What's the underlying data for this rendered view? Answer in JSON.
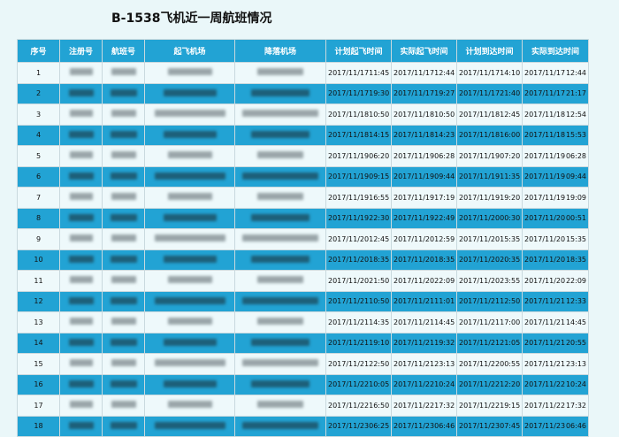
{
  "title": "B-1538飞机近一周航班情况",
  "headers": [
    "序号",
    "注册号",
    "航班号",
    "起飞机场",
    "降落机场",
    "计划起飞时间",
    "实际起飞时间",
    "计划到达时间",
    "实际到达时间"
  ],
  "colors": {
    "header": "#22a3d4",
    "alt_row": "#22a3d4",
    "row": "#eef9fb",
    "background": "#eaf7f9"
  },
  "rows": [
    [
      "1",
      "2017/11/17",
      "11:45",
      "2017/11/17",
      "12:44",
      "2017/11/17",
      "14:10",
      "2017/11/17",
      "12:44"
    ],
    [
      "2",
      "2017/11/17",
      "19:30",
      "2017/11/17",
      "19:27",
      "2017/11/17",
      "21:40",
      "2017/11/17",
      "21:17"
    ],
    [
      "3",
      "2017/11/18",
      "10:50",
      "2017/11/18",
      "10:50",
      "2017/11/18",
      "12:45",
      "2017/11/18",
      "12:54"
    ],
    [
      "4",
      "2017/11/18",
      "14:15",
      "2017/11/18",
      "14:23",
      "2017/11/18",
      "16:00",
      "2017/11/18",
      "15:53"
    ],
    [
      "5",
      "2017/11/19",
      "06:20",
      "2017/11/19",
      "06:28",
      "2017/11/19",
      "07:20",
      "2017/11/19",
      "06:28"
    ],
    [
      "6",
      "2017/11/19",
      "09:15",
      "2017/11/19",
      "09:44",
      "2017/11/19",
      "11:35",
      "2017/11/19",
      "09:44"
    ],
    [
      "7",
      "2017/11/19",
      "16:55",
      "2017/11/19",
      "17:19",
      "2017/11/19",
      "19:20",
      "2017/11/19",
      "19:09"
    ],
    [
      "8",
      "2017/11/19",
      "22:30",
      "2017/11/19",
      "22:49",
      "2017/11/20",
      "00:30",
      "2017/11/20",
      "00:51"
    ],
    [
      "9",
      "2017/11/20",
      "12:45",
      "2017/11/20",
      "12:59",
      "2017/11/20",
      "15:35",
      "2017/11/20",
      "15:35"
    ],
    [
      "10",
      "2017/11/20",
      "18:35",
      "2017/11/20",
      "18:35",
      "2017/11/20",
      "20:35",
      "2017/11/20",
      "18:35"
    ],
    [
      "11",
      "2017/11/20",
      "21:50",
      "2017/11/20",
      "22:09",
      "2017/11/20",
      "23:55",
      "2017/11/20",
      "22:09"
    ],
    [
      "12",
      "2017/11/21",
      "10:50",
      "2017/11/21",
      "11:01",
      "2017/11/21",
      "12:50",
      "2017/11/21",
      "12:33"
    ],
    [
      "13",
      "2017/11/21",
      "14:35",
      "2017/11/21",
      "14:45",
      "2017/11/21",
      "17:00",
      "2017/11/21",
      "14:45"
    ],
    [
      "14",
      "2017/11/21",
      "19:10",
      "2017/11/21",
      "19:32",
      "2017/11/21",
      "21:05",
      "2017/11/21",
      "20:55"
    ],
    [
      "15",
      "2017/11/21",
      "22:50",
      "2017/11/21",
      "23:13",
      "2017/11/22",
      "00:55",
      "2017/11/21",
      "23:13"
    ],
    [
      "16",
      "2017/11/22",
      "10:05",
      "2017/11/22",
      "10:24",
      "2017/11/22",
      "12:20",
      "2017/11/22",
      "10:24"
    ],
    [
      "17",
      "2017/11/22",
      "16:50",
      "2017/11/22",
      "17:32",
      "2017/11/22",
      "19:15",
      "2017/11/22",
      "17:32"
    ],
    [
      "18",
      "2017/11/23",
      "06:25",
      "2017/11/23",
      "06:46",
      "2017/11/23",
      "07:45",
      "2017/11/23",
      "06:46"
    ]
  ]
}
